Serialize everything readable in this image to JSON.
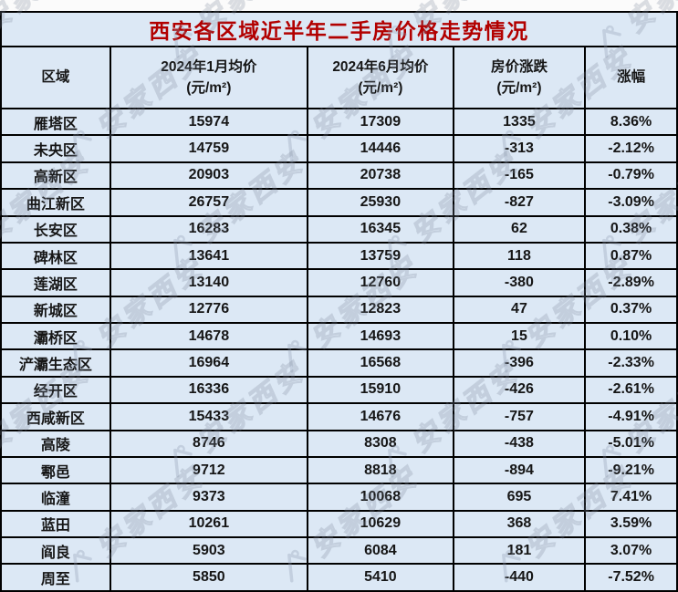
{
  "title": "西安各区域近半年二手房价格走势情况",
  "watermark": {
    "text": "安家西安",
    "logo": "house-roof-icon"
  },
  "colors": {
    "title-color": "#B20000",
    "text-color": "#161616",
    "bg-color": "#DCE8F5",
    "border-color": "#000000",
    "watermark-color": "#8C99AD"
  },
  "table": {
    "columns": [
      {
        "label": "区域",
        "sub": ""
      },
      {
        "label": "2024年1月均价",
        "sub": "(元/m²)"
      },
      {
        "label": "2024年6月均价",
        "sub": "(元/m²)"
      },
      {
        "label": "房价涨跌",
        "sub": "(元/m²)"
      },
      {
        "label": "涨幅",
        "sub": ""
      }
    ],
    "rows": [
      [
        "雁塔区",
        "15974",
        "17309",
        "1335",
        "8.36%"
      ],
      [
        "未央区",
        "14759",
        "14446",
        "-313",
        "-2.12%"
      ],
      [
        "高新区",
        "20903",
        "20738",
        "-165",
        "-0.79%"
      ],
      [
        "曲江新区",
        "26757",
        "25930",
        "-827",
        "-3.09%"
      ],
      [
        "长安区",
        "16283",
        "16345",
        "62",
        "0.38%"
      ],
      [
        "碑林区",
        "13641",
        "13759",
        "118",
        "0.87%"
      ],
      [
        "莲湖区",
        "13140",
        "12760",
        "-380",
        "-2.89%"
      ],
      [
        "新城区",
        "12776",
        "12823",
        "47",
        "0.37%"
      ],
      [
        "灞桥区",
        "14678",
        "14693",
        "15",
        "0.10%"
      ],
      [
        "浐灞生态区",
        "16964",
        "16568",
        "-396",
        "-2.33%"
      ],
      [
        "经开区",
        "16336",
        "15910",
        "-426",
        "-2.61%"
      ],
      [
        "西咸新区",
        "15433",
        "14676",
        "-757",
        "-4.91%"
      ],
      [
        "高陵",
        "8746",
        "8308",
        "-438",
        "-5.01%"
      ],
      [
        "鄠邑",
        "9712",
        "8818",
        "-894",
        "-9.21%"
      ],
      [
        "临潼",
        "9373",
        "10068",
        "695",
        "7.41%"
      ],
      [
        "蓝田",
        "10261",
        "10629",
        "368",
        "3.59%"
      ],
      [
        "阎良",
        "5903",
        "6084",
        "181",
        "3.07%"
      ],
      [
        "周至",
        "5850",
        "5410",
        "-440",
        "-7.52%"
      ]
    ]
  }
}
